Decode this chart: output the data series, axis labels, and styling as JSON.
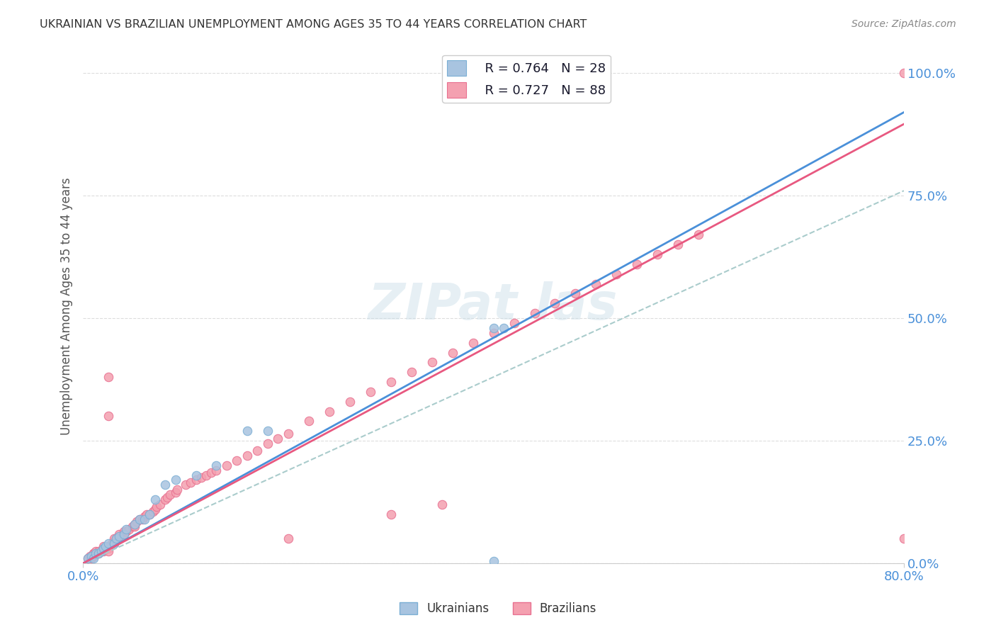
{
  "title": "UKRAINIAN VS BRAZILIAN UNEMPLOYMENT AMONG AGES 35 TO 44 YEARS CORRELATION CHART",
  "source": "Source: ZipAtlas.com",
  "ylabel": "Unemployment Among Ages 35 to 44 years",
  "xlim": [
    0.0,
    0.8
  ],
  "ylim": [
    0.0,
    1.05
  ],
  "ytick_labels": [
    "0.0%",
    "25.0%",
    "50.0%",
    "75.0%",
    "100.0%"
  ],
  "ytick_values": [
    0.0,
    0.25,
    0.5,
    0.75,
    1.0
  ],
  "legend_r_ukrainian": "0.764",
  "legend_n_ukrainian": "28",
  "legend_r_brazilian": "0.727",
  "legend_n_brazilian": "88",
  "ukrainian_color": "#a8c4e0",
  "brazilian_color": "#f4a0b0",
  "ukrainian_edge": "#7bafd4",
  "brazilian_edge": "#e87090",
  "trendline_ukrainian_color": "#4a90d9",
  "trendline_brazilian_color": "#e85880",
  "trendline_dashed_color": "#aacccc",
  "background_color": "#ffffff",
  "grid_color": "#dddddd",
  "title_color": "#333333",
  "source_color": "#888888",
  "axis_label_color": "#4a90d9",
  "slope_ukrainian": 1.15,
  "slope_brazilian": 1.12,
  "slope_dashed": 0.95,
  "scatter_size": 80,
  "uk_x": [
    0.005,
    0.008,
    0.01,
    0.012,
    0.015,
    0.018,
    0.02,
    0.022,
    0.025,
    0.03,
    0.032,
    0.035,
    0.04,
    0.042,
    0.05,
    0.055,
    0.06,
    0.065,
    0.07,
    0.08,
    0.09,
    0.11,
    0.13,
    0.16,
    0.18,
    0.4,
    0.4,
    0.41
  ],
  "uk_y": [
    0.01,
    0.015,
    0.01,
    0.02,
    0.02,
    0.025,
    0.03,
    0.035,
    0.04,
    0.04,
    0.05,
    0.055,
    0.06,
    0.07,
    0.08,
    0.09,
    0.09,
    0.1,
    0.13,
    0.16,
    0.17,
    0.18,
    0.2,
    0.27,
    0.27,
    0.48,
    0.005,
    0.48
  ],
  "br_x": [
    0.005,
    0.007,
    0.008,
    0.01,
    0.01,
    0.01,
    0.012,
    0.015,
    0.015,
    0.018,
    0.02,
    0.02,
    0.02,
    0.022,
    0.025,
    0.025,
    0.028,
    0.03,
    0.03,
    0.03,
    0.032,
    0.035,
    0.035,
    0.038,
    0.04,
    0.04,
    0.042,
    0.045,
    0.048,
    0.05,
    0.05,
    0.052,
    0.055,
    0.058,
    0.06,
    0.062,
    0.065,
    0.068,
    0.07,
    0.072,
    0.075,
    0.08,
    0.082,
    0.085,
    0.09,
    0.092,
    0.1,
    0.105,
    0.11,
    0.115,
    0.12,
    0.125,
    0.13,
    0.14,
    0.15,
    0.16,
    0.17,
    0.18,
    0.19,
    0.2,
    0.22,
    0.24,
    0.26,
    0.28,
    0.3,
    0.32,
    0.34,
    0.36,
    0.38,
    0.4,
    0.42,
    0.44,
    0.46,
    0.48,
    0.5,
    0.52,
    0.54,
    0.56,
    0.58,
    0.6,
    0.025,
    0.025,
    0.3,
    0.35,
    0.025,
    0.2,
    0.8,
    0.8
  ],
  "br_y": [
    0.01,
    0.015,
    0.01,
    0.015,
    0.02,
    0.02,
    0.025,
    0.02,
    0.025,
    0.025,
    0.025,
    0.03,
    0.035,
    0.03,
    0.03,
    0.035,
    0.04,
    0.04,
    0.045,
    0.05,
    0.05,
    0.055,
    0.06,
    0.055,
    0.06,
    0.065,
    0.065,
    0.07,
    0.075,
    0.075,
    0.08,
    0.085,
    0.09,
    0.09,
    0.095,
    0.1,
    0.1,
    0.105,
    0.11,
    0.115,
    0.12,
    0.13,
    0.135,
    0.14,
    0.145,
    0.15,
    0.16,
    0.165,
    0.17,
    0.175,
    0.18,
    0.185,
    0.19,
    0.2,
    0.21,
    0.22,
    0.23,
    0.245,
    0.255,
    0.265,
    0.29,
    0.31,
    0.33,
    0.35,
    0.37,
    0.39,
    0.41,
    0.43,
    0.45,
    0.47,
    0.49,
    0.51,
    0.53,
    0.55,
    0.57,
    0.59,
    0.61,
    0.63,
    0.65,
    0.67,
    0.38,
    0.3,
    0.1,
    0.12,
    0.025,
    0.05,
    1.0,
    0.05
  ]
}
